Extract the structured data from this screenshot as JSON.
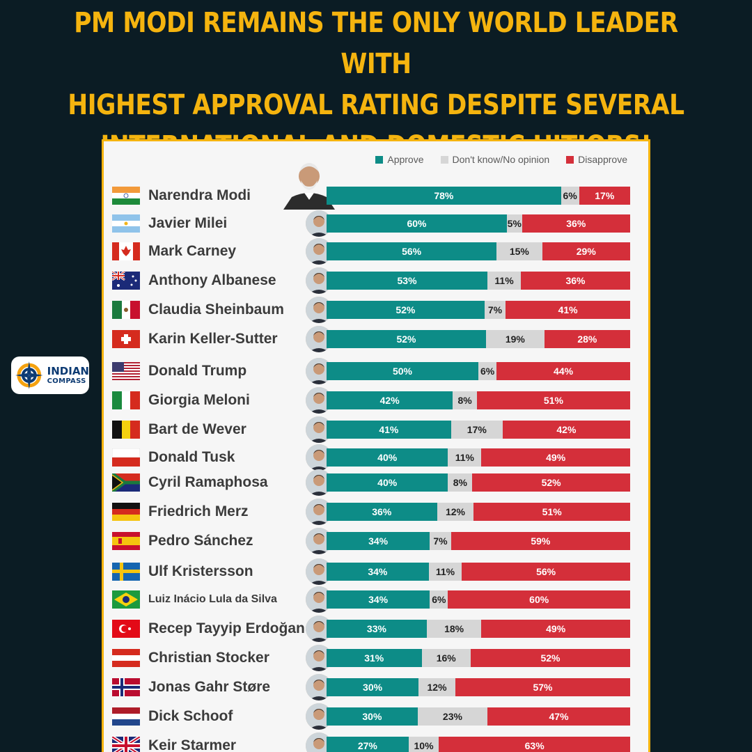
{
  "headline": {
    "line1": "PM MODI REMAINS THE ONLY WORLD LEADER WITH",
    "line2": "HIGHEST APPROVAL RATING DESPITE SEVERAL",
    "line3": "INTERNATIONAL AND DOMESTIC HITJOBS!"
  },
  "logo": {
    "line1": "INDIAN",
    "line2": "COMPASS"
  },
  "colors": {
    "approve": "#0d8c87",
    "neutral": "#d6d6d6",
    "disapprove": "#d42f3a",
    "headline": "#f5b40f",
    "background": "#0b1c24"
  },
  "chart_data": {
    "type": "bar",
    "orientation": "horizontal-stacked",
    "legend": [
      "Approve",
      "Don't know/No opinion",
      "Disapprove"
    ],
    "legend_position": "top-right",
    "categories": [
      "Narendra Modi",
      "Javier Milei",
      "Mark Carney",
      "Anthony Albanese",
      "Claudia Sheinbaum",
      "Karin Keller-Sutter",
      "Donald Trump",
      "Giorgia Meloni",
      "Bart de Wever",
      "Donald Tusk",
      "Cyril Ramaphosa",
      "Friedrich Merz",
      "Pedro Sánchez",
      "Ulf Kristersson",
      "Luiz Inácio Lula da Silva",
      "Recep Tayyip Erdoğan",
      "Christian Stocker",
      "Jonas Gahr Støre",
      "Dick Schoof",
      "Keir Starmer"
    ],
    "series": [
      {
        "name": "Approve",
        "values": [
          78,
          60,
          56,
          53,
          52,
          52,
          50,
          42,
          41,
          40,
          40,
          36,
          34,
          34,
          34,
          33,
          31,
          30,
          30,
          27
        ]
      },
      {
        "name": "Don't know/No opinion",
        "values": [
          6,
          5,
          15,
          11,
          7,
          19,
          6,
          8,
          17,
          11,
          8,
          12,
          7,
          11,
          6,
          18,
          16,
          12,
          23,
          10
        ]
      },
      {
        "name": "Disapprove",
        "values": [
          17,
          36,
          29,
          36,
          41,
          28,
          44,
          51,
          42,
          49,
          52,
          51,
          59,
          56,
          60,
          49,
          52,
          57,
          47,
          63
        ]
      }
    ],
    "labels": {
      "approve": [
        "78%",
        "60%",
        "56%",
        "53%",
        "52%",
        "52%",
        "50%",
        "42%",
        "41%",
        "40%",
        "40%",
        "36%",
        "34%",
        "34%",
        "34%",
        "33%",
        "31%",
        "30%",
        "30%",
        "27%"
      ],
      "neutral": [
        "6%",
        "5%",
        "15%",
        "11%",
        "7%",
        "19%",
        "6%",
        "8%",
        "17%",
        "11%",
        "8%",
        "12%",
        "7%",
        "11%",
        "6%",
        "18%",
        "16%",
        "12%",
        "23%",
        "10%"
      ],
      "disapprove": [
        "17%",
        "36%",
        "29%",
        "36%",
        "41%",
        "28%",
        "44%",
        "51%",
        "42%",
        "49%",
        "52%",
        "51%",
        "59%",
        "56%",
        "60%",
        "49%",
        "52%",
        "57%",
        "47%",
        "63%"
      ]
    },
    "flags": [
      "india",
      "argentina",
      "canada",
      "australia",
      "mexico",
      "switzerland",
      "usa",
      "italy",
      "belgium",
      "poland",
      "south-africa",
      "germany",
      "spain",
      "sweden",
      "brazil",
      "turkey",
      "austria",
      "norway",
      "netherlands",
      "uk"
    ]
  }
}
